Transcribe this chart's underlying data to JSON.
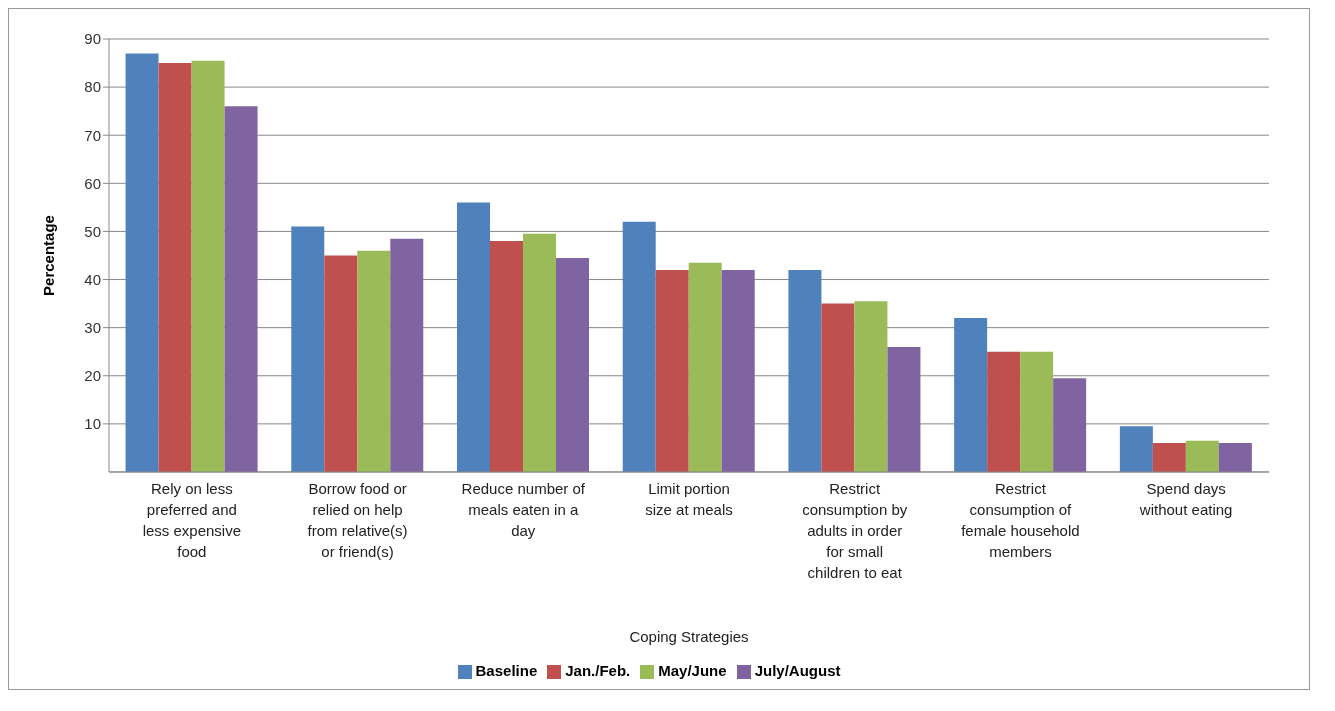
{
  "chart_data": {
    "type": "bar",
    "xlabel": "Coping Strategies",
    "ylabel": "Percentage",
    "categories": [
      "Rely on less preferred and less expensive food",
      "Borrow food or relied on help from relative(s) or friend(s)",
      "Reduce number of meals eaten in a day",
      "Limit portion size at meals",
      "Restrict consumption by adults in order for small children to eat",
      "Restrict consumption of female household members",
      "Spend days without eating"
    ],
    "series": [
      {
        "name": "Baseline",
        "color": "#4f81bd",
        "values": [
          87,
          51,
          56,
          52,
          42,
          32,
          9.5
        ]
      },
      {
        "name": "Jan./Feb.",
        "color": "#c0504d",
        "values": [
          85,
          45,
          48,
          42,
          35,
          25,
          6
        ]
      },
      {
        "name": "May/June",
        "color": "#9bbb59",
        "values": [
          85.5,
          46,
          49.5,
          43.5,
          35.5,
          25,
          6.5
        ]
      },
      {
        "name": "July/August",
        "color": "#8064a2",
        "values": [
          76,
          48.5,
          44.5,
          42,
          26,
          19.5,
          6
        ]
      }
    ],
    "ylim": [
      0,
      90
    ],
    "yticks": [
      10,
      20,
      30,
      40,
      50,
      60,
      70,
      80,
      90
    ],
    "grid": "y",
    "legend": "bottom"
  }
}
